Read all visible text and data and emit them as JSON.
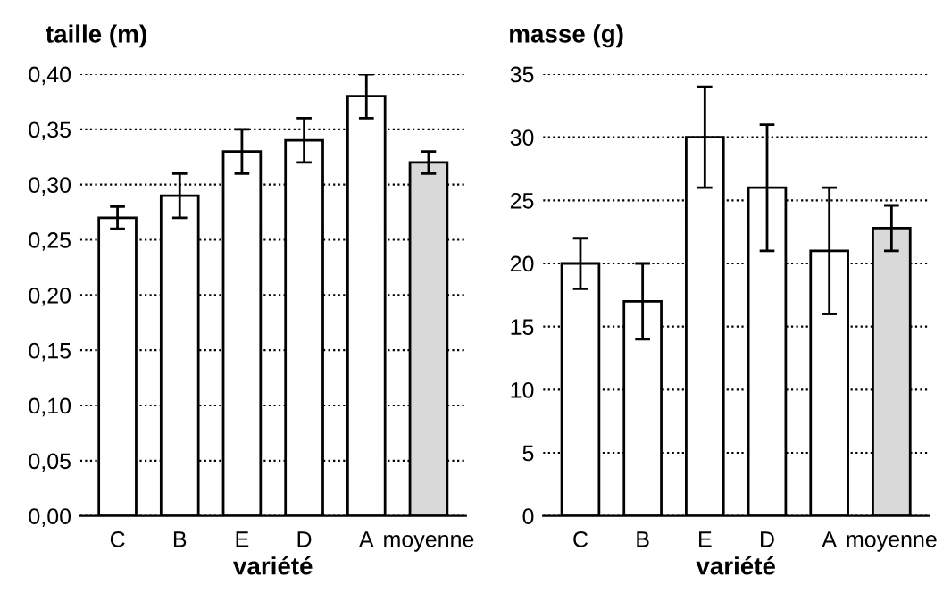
{
  "chart_data": [
    {
      "type": "bar",
      "ylabel": "taille (m)",
      "xlabel": "variété",
      "categories": [
        "C",
        "B",
        "E",
        "D",
        "A",
        "moyenne"
      ],
      "values": [
        0.27,
        0.29,
        0.33,
        0.34,
        0.38,
        0.32
      ],
      "errors": [
        0.01,
        0.02,
        0.02,
        0.02,
        0.02,
        0.01
      ],
      "colors": [
        "#ffffff",
        "#ffffff",
        "#ffffff",
        "#ffffff",
        "#ffffff",
        "#d9d9d9"
      ],
      "ylim": [
        0,
        0.4
      ],
      "yticks": [
        {
          "value": 0,
          "label": "0,00"
        },
        {
          "value": 0.05,
          "label": "0,05"
        },
        {
          "value": 0.1,
          "label": "0,10"
        },
        {
          "value": 0.15,
          "label": "0,15"
        },
        {
          "value": 0.2,
          "label": "0,20"
        },
        {
          "value": 0.25,
          "label": "0,25"
        },
        {
          "value": 0.3,
          "label": "0,30"
        },
        {
          "value": 0.35,
          "label": "0,35"
        },
        {
          "value": 0.4,
          "label": "0,40"
        }
      ],
      "grid": "y"
    },
    {
      "type": "bar",
      "ylabel": "masse (g)",
      "xlabel": "variété",
      "categories": [
        "C",
        "B",
        "E",
        "D",
        "A",
        "moyenne"
      ],
      "values": [
        20,
        17,
        30,
        26,
        21,
        22.8
      ],
      "errors": [
        2,
        3,
        4,
        5,
        5,
        1.8
      ],
      "colors": [
        "#ffffff",
        "#ffffff",
        "#ffffff",
        "#ffffff",
        "#ffffff",
        "#d9d9d9"
      ],
      "ylim": [
        0,
        35
      ],
      "yticks": [
        0,
        5,
        10,
        15,
        20,
        25,
        30,
        35
      ],
      "grid": "y"
    }
  ]
}
